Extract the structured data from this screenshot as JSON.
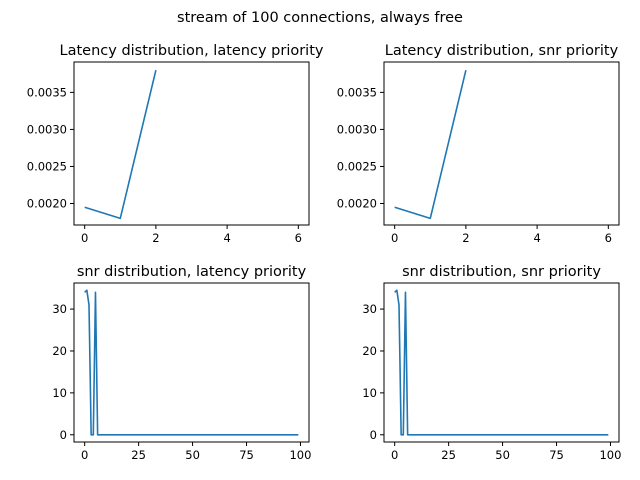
{
  "suptitle": "stream of 100 connections, always free",
  "colors": {
    "line": "#1f77b4",
    "axes": "#000000",
    "background": "#ffffff"
  },
  "chart_data": [
    {
      "type": "line",
      "title": "Latency distribution, latency priority",
      "xlabel": "",
      "ylabel": "",
      "x": [
        0,
        1,
        2
      ],
      "y": [
        0.00195,
        0.0018,
        0.0038
      ],
      "xlim": [
        -0.3,
        6.3
      ],
      "ylim": [
        0.00171,
        0.00391
      ],
      "xticks": [
        0,
        2,
        4,
        6
      ],
      "yticks": [
        0.002,
        0.0025,
        0.003,
        0.0035
      ],
      "ytick_labels": [
        "0.0020",
        "0.0025",
        "0.0030",
        "0.0035"
      ],
      "grid": false
    },
    {
      "type": "line",
      "title": "Latency distribution, snr priority",
      "xlabel": "",
      "ylabel": "",
      "x": [
        0,
        1,
        2
      ],
      "y": [
        0.00195,
        0.0018,
        0.0038
      ],
      "xlim": [
        -0.3,
        6.3
      ],
      "ylim": [
        0.00171,
        0.00391
      ],
      "xticks": [
        0,
        2,
        4,
        6
      ],
      "yticks": [
        0.002,
        0.0025,
        0.003,
        0.0035
      ],
      "ytick_labels": [
        "0.0020",
        "0.0025",
        "0.0030",
        "0.0035"
      ],
      "grid": false
    },
    {
      "type": "line",
      "title": "snr distribution, latency priority",
      "xlabel": "",
      "ylabel": "",
      "x": [
        0,
        1,
        2,
        3,
        4,
        5,
        6,
        7,
        8,
        9,
        10,
        11,
        12,
        13,
        14,
        15,
        16,
        17,
        18,
        19,
        20,
        21,
        22,
        23,
        24,
        25,
        26,
        27,
        28,
        29,
        30,
        31,
        32,
        33,
        34,
        35,
        36,
        37,
        38,
        39,
        40,
        41,
        42,
        43,
        44,
        45,
        46,
        47,
        48,
        49,
        50,
        51,
        52,
        53,
        54,
        55,
        56,
        57,
        58,
        59,
        60,
        61,
        62,
        63,
        64,
        65,
        66,
        67,
        68,
        69,
        70,
        71,
        72,
        73,
        74,
        75,
        76,
        77,
        78,
        79,
        80,
        81,
        82,
        83,
        84,
        85,
        86,
        87,
        88,
        89,
        90,
        91,
        92,
        93,
        94,
        95,
        96,
        97,
        98,
        99
      ],
      "y": [
        34,
        34.5,
        31,
        0,
        0,
        34,
        0,
        0,
        0,
        0,
        0,
        0,
        0,
        0,
        0,
        0,
        0,
        0,
        0,
        0,
        0,
        0,
        0,
        0,
        0,
        0,
        0,
        0,
        0,
        0,
        0,
        0,
        0,
        0,
        0,
        0,
        0,
        0,
        0,
        0,
        0,
        0,
        0,
        0,
        0,
        0,
        0,
        0,
        0,
        0,
        0,
        0,
        0,
        0,
        0,
        0,
        0,
        0,
        0,
        0,
        0,
        0,
        0,
        0,
        0,
        0,
        0,
        0,
        0,
        0,
        0,
        0,
        0,
        0,
        0,
        0,
        0,
        0,
        0,
        0,
        0,
        0,
        0,
        0,
        0,
        0,
        0,
        0,
        0,
        0,
        0,
        0,
        0,
        0,
        0,
        0,
        0,
        0,
        0,
        0
      ],
      "xlim": [
        -4.95,
        103.95
      ],
      "ylim": [
        -1.725,
        36.225
      ],
      "xticks": [
        0,
        25,
        50,
        75,
        100
      ],
      "yticks": [
        0,
        10,
        20,
        30
      ],
      "grid": false
    },
    {
      "type": "line",
      "title": "snr distribution, snr priority",
      "xlabel": "",
      "ylabel": "",
      "x": [
        0,
        1,
        2,
        3,
        4,
        5,
        6,
        7,
        8,
        9,
        10,
        11,
        12,
        13,
        14,
        15,
        16,
        17,
        18,
        19,
        20,
        21,
        22,
        23,
        24,
        25,
        26,
        27,
        28,
        29,
        30,
        31,
        32,
        33,
        34,
        35,
        36,
        37,
        38,
        39,
        40,
        41,
        42,
        43,
        44,
        45,
        46,
        47,
        48,
        49,
        50,
        51,
        52,
        53,
        54,
        55,
        56,
        57,
        58,
        59,
        60,
        61,
        62,
        63,
        64,
        65,
        66,
        67,
        68,
        69,
        70,
        71,
        72,
        73,
        74,
        75,
        76,
        77,
        78,
        79,
        80,
        81,
        82,
        83,
        84,
        85,
        86,
        87,
        88,
        89,
        90,
        91,
        92,
        93,
        94,
        95,
        96,
        97,
        98,
        99
      ],
      "y": [
        34,
        34.5,
        31,
        0,
        0,
        34,
        0,
        0,
        0,
        0,
        0,
        0,
        0,
        0,
        0,
        0,
        0,
        0,
        0,
        0,
        0,
        0,
        0,
        0,
        0,
        0,
        0,
        0,
        0,
        0,
        0,
        0,
        0,
        0,
        0,
        0,
        0,
        0,
        0,
        0,
        0,
        0,
        0,
        0,
        0,
        0,
        0,
        0,
        0,
        0,
        0,
        0,
        0,
        0,
        0,
        0,
        0,
        0,
        0,
        0,
        0,
        0,
        0,
        0,
        0,
        0,
        0,
        0,
        0,
        0,
        0,
        0,
        0,
        0,
        0,
        0,
        0,
        0,
        0,
        0,
        0,
        0,
        0,
        0,
        0,
        0,
        0,
        0,
        0,
        0,
        0,
        0,
        0,
        0,
        0,
        0,
        0,
        0,
        0,
        0
      ],
      "xlim": [
        -4.95,
        103.95
      ],
      "ylim": [
        -1.725,
        36.225
      ],
      "xticks": [
        0,
        25,
        50,
        75,
        100
      ],
      "yticks": [
        0,
        10,
        20,
        30
      ],
      "grid": false
    }
  ]
}
